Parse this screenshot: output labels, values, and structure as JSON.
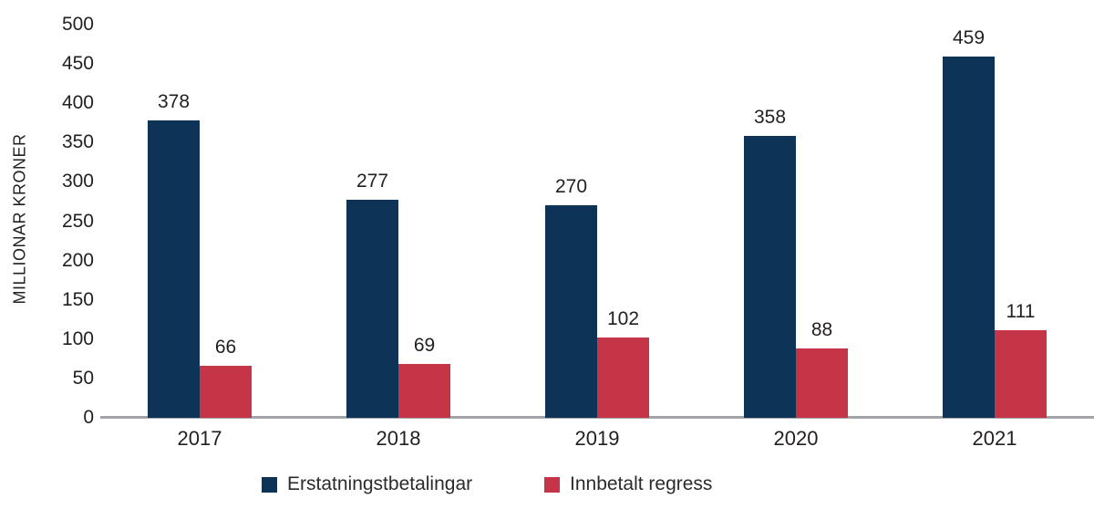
{
  "chart_data": {
    "type": "bar",
    "title": "",
    "categories": [
      "2017",
      "2018",
      "2019",
      "2020",
      "2021"
    ],
    "series": [
      {
        "name": "Erstatningstbetalingar",
        "color": "#0d3356",
        "values": [
          378,
          277,
          270,
          358,
          459
        ]
      },
      {
        "name": "Innbetalt regress",
        "color": "#c63447",
        "values": [
          66,
          69,
          102,
          88,
          111
        ]
      }
    ],
    "xlabel": "",
    "ylabel": "MILLIONAR KRONER",
    "ylim": [
      0,
      500
    ],
    "yticks": [
      0,
      50,
      100,
      150,
      200,
      250,
      300,
      350,
      400,
      450,
      500
    ],
    "grid": false,
    "legend_position": "bottom",
    "bar_value_labels": true,
    "axis_line_color": "#a2a4a7",
    "text_color": "#231f20"
  }
}
